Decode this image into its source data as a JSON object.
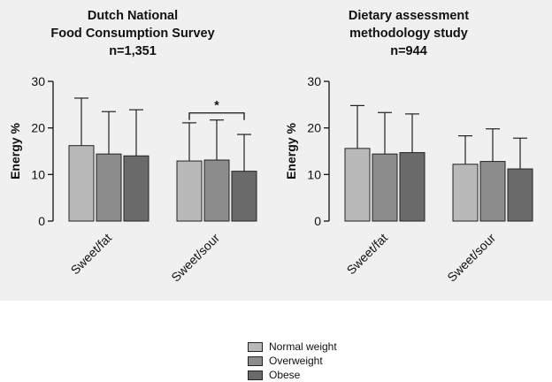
{
  "chart_data": [
    {
      "type": "bar",
      "title": [
        "Dutch National",
        "Food Consumption Survey",
        "n=1,351"
      ],
      "ylabel": "Energy %",
      "ylim": [
        0,
        30
      ],
      "yticks": [
        0,
        10,
        20,
        30
      ],
      "categories": [
        "Sweet/fat",
        "Sweet/sour"
      ],
      "series": [
        {
          "name": "Normal weight",
          "values": [
            16.2,
            12.9
          ],
          "sd_upper": [
            26.4,
            21.1
          ],
          "color": "#b9b9b9"
        },
        {
          "name": "Overweight",
          "values": [
            14.4,
            13.1
          ],
          "sd_upper": [
            23.5,
            21.7
          ],
          "color": "#8c8c8c"
        },
        {
          "name": "Obese",
          "values": [
            14.0,
            10.7
          ],
          "sd_upper": [
            23.9,
            18.6
          ],
          "color": "#6a6a6a"
        }
      ],
      "significance": {
        "category": "Sweet/sour",
        "between": [
          "Normal weight",
          "Obese"
        ],
        "label": "*"
      }
    },
    {
      "type": "bar",
      "title": [
        "Dietary assessment",
        "methodology study",
        "n=944"
      ],
      "ylabel": "Energy %",
      "ylim": [
        0,
        30
      ],
      "yticks": [
        0,
        10,
        20,
        30
      ],
      "categories": [
        "Sweet/fat",
        "Sweet/sour"
      ],
      "series": [
        {
          "name": "Normal weight",
          "values": [
            15.6,
            12.2
          ],
          "sd_upper": [
            24.8,
            18.3
          ],
          "color": "#b9b9b9"
        },
        {
          "name": "Overweight",
          "values": [
            14.4,
            12.8
          ],
          "sd_upper": [
            23.3,
            19.8
          ],
          "color": "#8c8c8c"
        },
        {
          "name": "Obese",
          "values": [
            14.7,
            11.2
          ],
          "sd_upper": [
            23.0,
            17.8
          ],
          "color": "#6a6a6a"
        }
      ]
    }
  ],
  "legend": {
    "items": [
      {
        "label": "Normal weight",
        "color": "#b9b9b9"
      },
      {
        "label": "Overweight",
        "color": "#8c8c8c"
      },
      {
        "label": "Obese",
        "color": "#6a6a6a"
      }
    ]
  }
}
